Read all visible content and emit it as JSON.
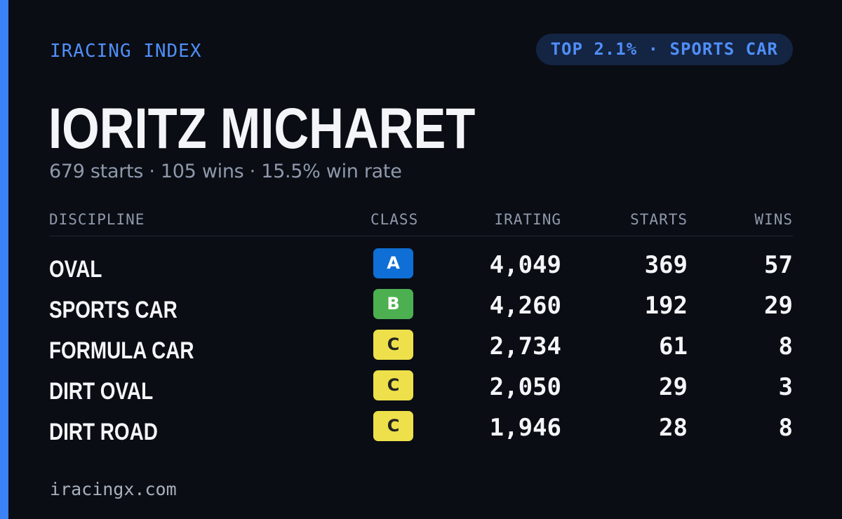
{
  "brand": "IRACING INDEX",
  "badge": "TOP 2.1% · SPORTS CAR",
  "driver": {
    "name": "IORITZ MICHARET",
    "summary": "679 starts · 105 wins · 15.5% win rate"
  },
  "table": {
    "headers": {
      "discipline": "DISCIPLINE",
      "class": "CLASS",
      "irating": "IRATING",
      "starts": "STARTS",
      "wins": "WINS"
    },
    "rows": [
      {
        "discipline": "OVAL",
        "class": "A",
        "irating": "4,049",
        "starts": "369",
        "wins": "57"
      },
      {
        "discipline": "SPORTS CAR",
        "class": "B",
        "irating": "4,260",
        "starts": "192",
        "wins": "29"
      },
      {
        "discipline": "FORMULA CAR",
        "class": "C",
        "irating": "2,734",
        "starts": "61",
        "wins": "8"
      },
      {
        "discipline": "DIRT OVAL",
        "class": "C",
        "irating": "2,050",
        "starts": "29",
        "wins": "3"
      },
      {
        "discipline": "DIRT ROAD",
        "class": "C",
        "irating": "1,946",
        "starts": "28",
        "wins": "8"
      }
    ]
  },
  "class_colors": {
    "A": {
      "bg": "#0f6fd6",
      "fg": "#ffffff"
    },
    "B": {
      "bg": "#4cb050",
      "fg": "#ffffff"
    },
    "C": {
      "bg": "#ede04a",
      "fg": "#222222"
    }
  },
  "footer": "iracingx.com",
  "colors": {
    "accent": "#3b82f6",
    "background": "#0a0d14",
    "badge_bg": "#142443"
  }
}
